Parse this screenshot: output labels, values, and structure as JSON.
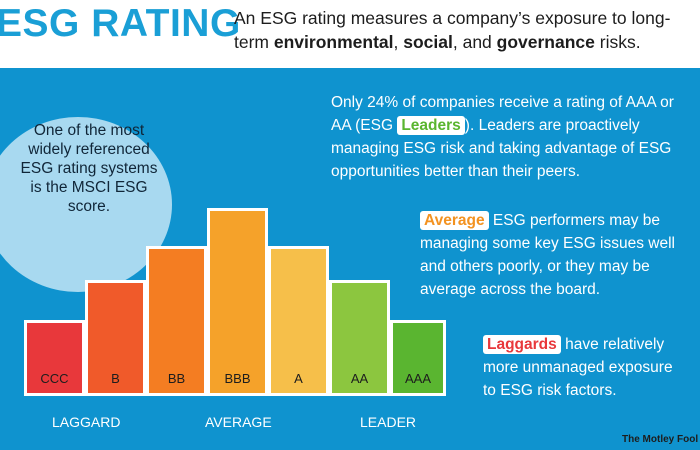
{
  "header": {
    "title": "ESG RATING",
    "subtitle_parts": [
      "An ESG rating measures a company’s exposure to long-term ",
      "environmental",
      ", ",
      "social",
      ", and ",
      "governance",
      " risks."
    ]
  },
  "bubble": {
    "text": "One of the most widely referenced ESG rating systems is the MSCI ESG score."
  },
  "chart_data": {
    "type": "bar",
    "categories": [
      "CCC",
      "B",
      "BB",
      "BBB",
      "A",
      "AA",
      "AAA"
    ],
    "colors": [
      "#e8383b",
      "#f05a2a",
      "#f47d22",
      "#f5a22a",
      "#f6bf4a",
      "#8cc63f",
      "#5ab530"
    ],
    "groups": [
      "LAGGARD",
      "AVERAGE",
      "LEADER"
    ]
  },
  "paragraphs": {
    "leaders": {
      "before": "Only 24% of companies receive a rating of AAA or AA (ESG ",
      "tag": "Leaders",
      "after": "). Leaders are proactively managing ESG risk and taking advantage of ESG opportunities better than their peers."
    },
    "average": {
      "tag": "Average",
      "after": " ESG performers may be managing some key ESG issues well and others poorly, or they may be average across the board."
    },
    "laggards": {
      "tag": "Laggards",
      "after": " have relatively more unmanaged exposure to ESG risk factors."
    }
  },
  "brand": {
    "text": "The Motley Fool",
    "icon": "jester-hat-icon"
  }
}
